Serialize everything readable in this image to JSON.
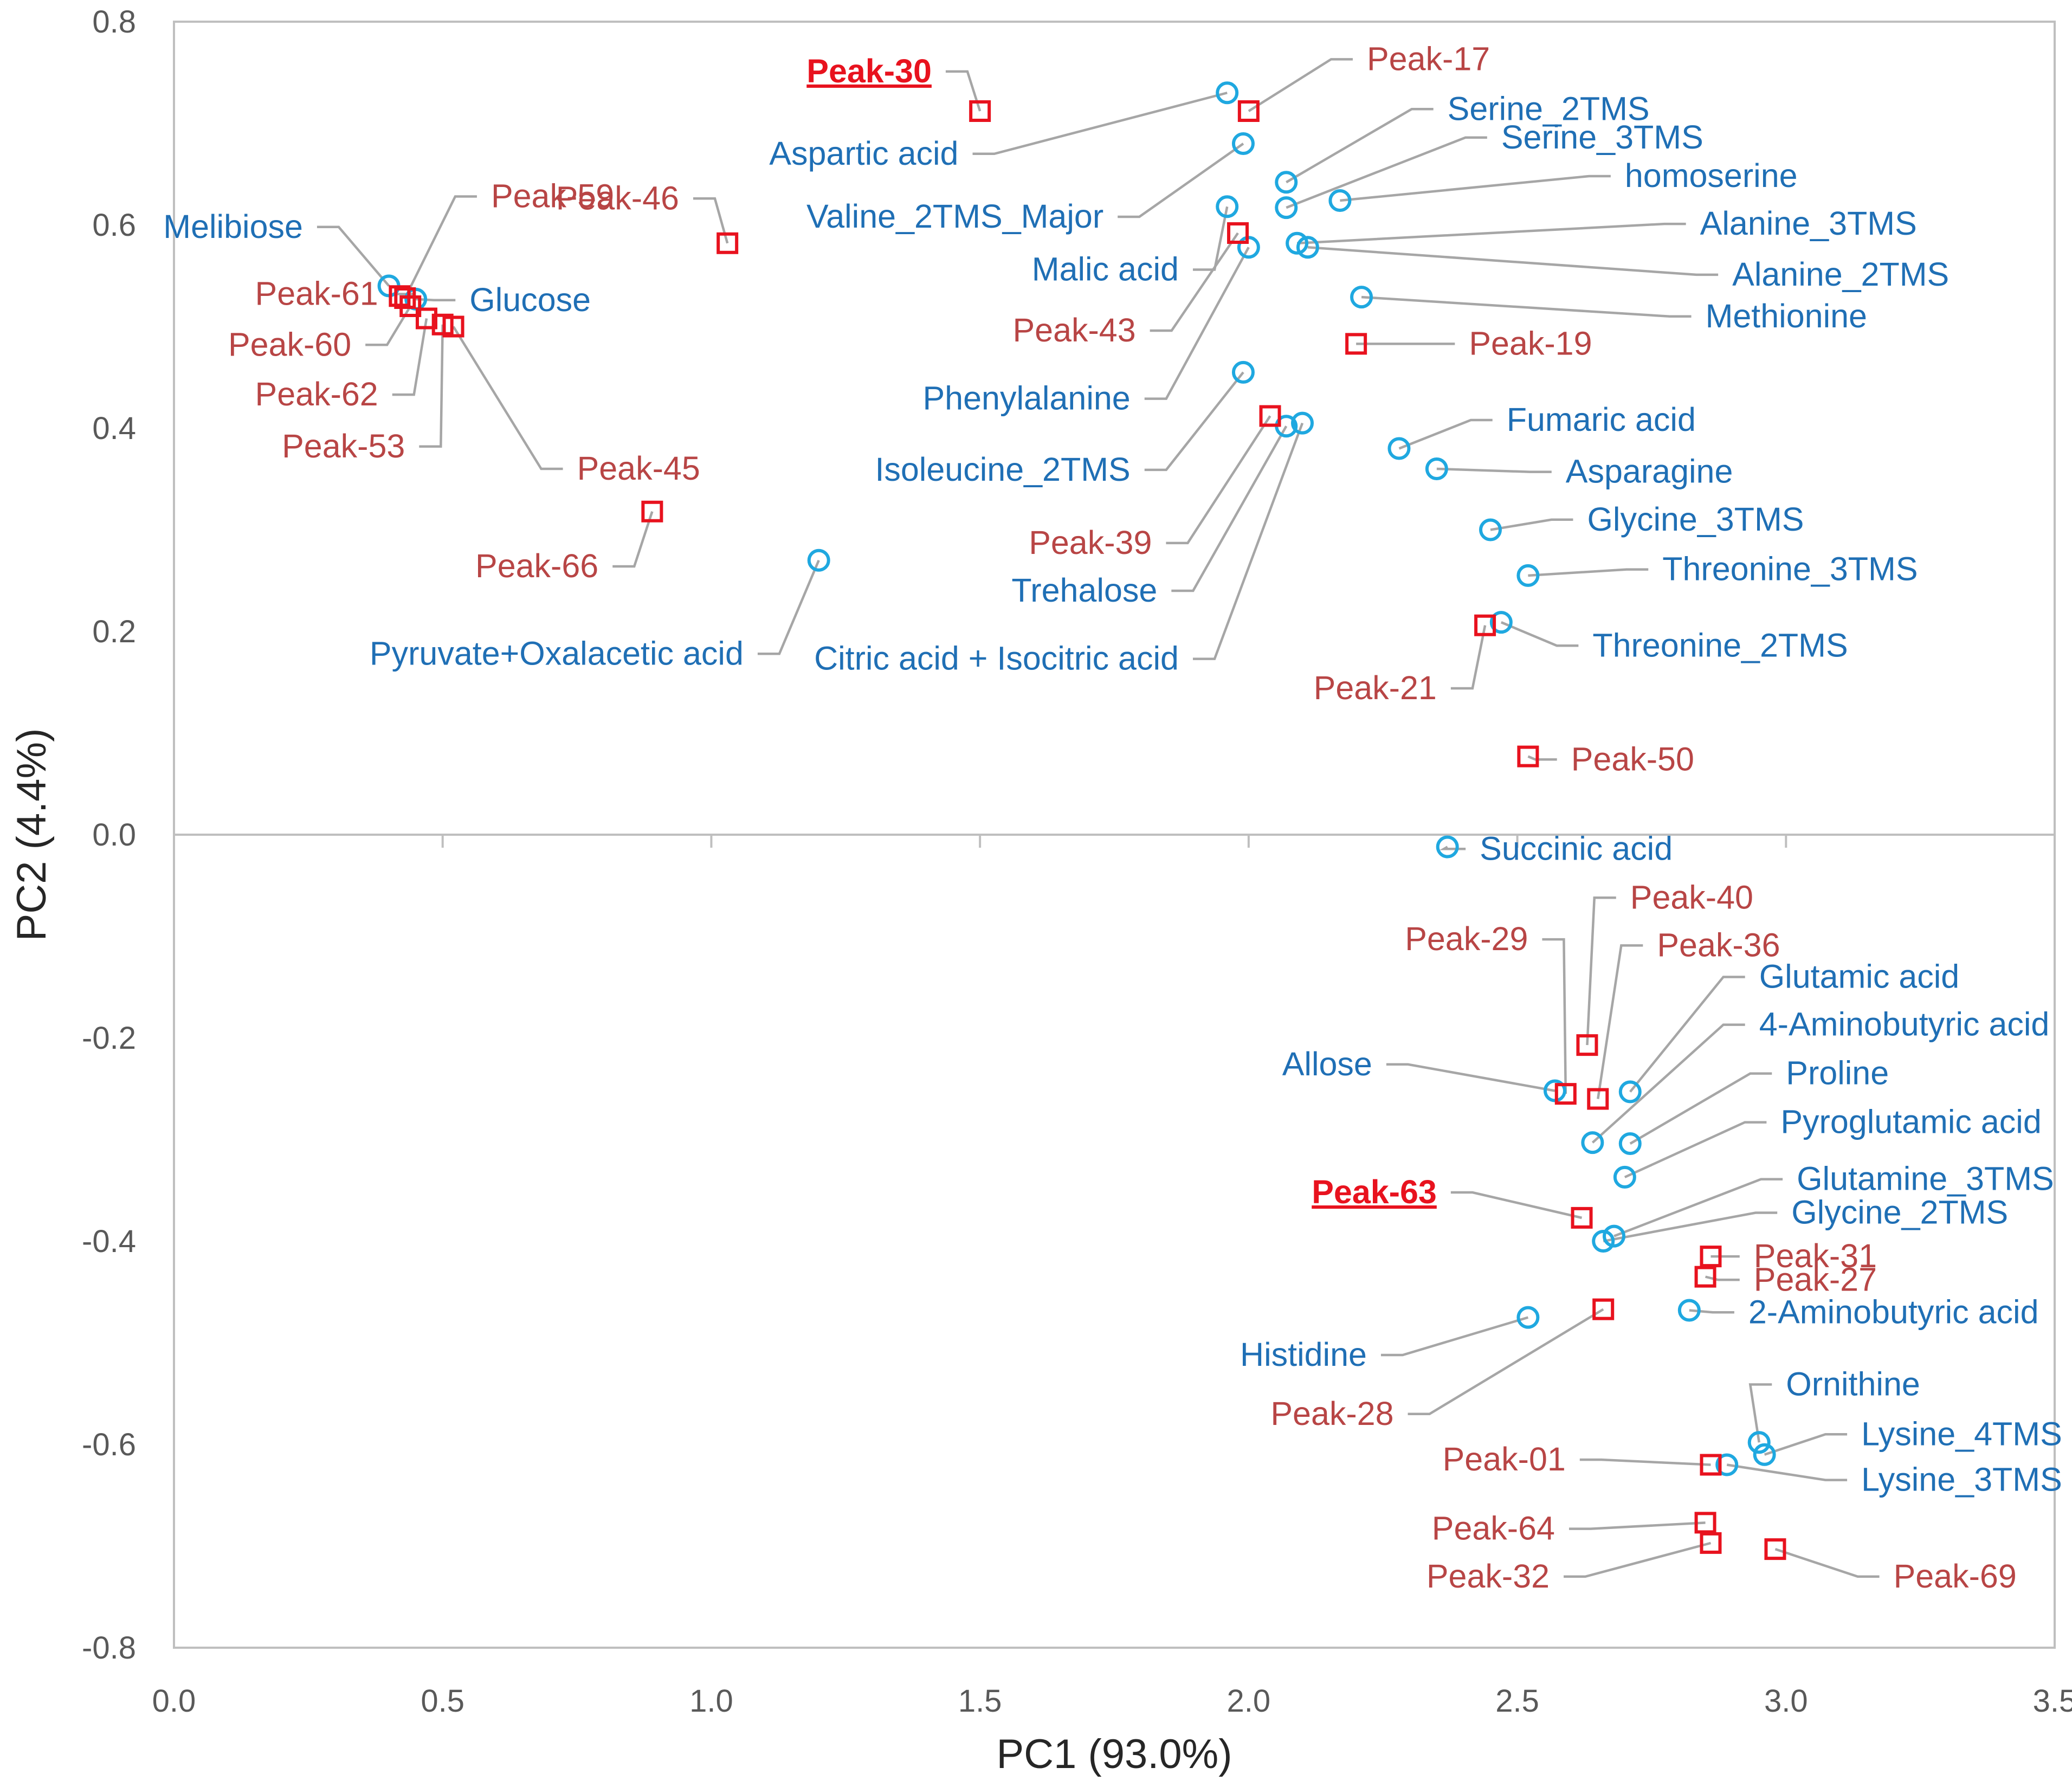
{
  "chart_data": {
    "type": "scatter",
    "title": "",
    "xlabel": "PC1 (93.0%)",
    "ylabel": "PC2 (4.4%)",
    "xlim": [
      0.0,
      3.5
    ],
    "ylim": [
      -0.8,
      0.8
    ],
    "x_ticks": [
      "0.0",
      "0.5",
      "1.0",
      "1.5",
      "2.0",
      "2.5",
      "3.0",
      "3.5"
    ],
    "y_ticks": [
      "0.8",
      "0.6",
      "0.4",
      "0.2",
      "0.0",
      "-0.2",
      "-0.4",
      "-0.6",
      "-0.8"
    ],
    "x_tick_values": [
      0.0,
      0.5,
      1.0,
      1.5,
      2.0,
      2.5,
      3.0,
      3.5
    ],
    "y_tick_values": [
      0.8,
      0.6,
      0.4,
      0.2,
      0.0,
      -0.2,
      -0.4,
      -0.6,
      -0.8
    ],
    "colors": {
      "known_marker": "#1fa8e0",
      "known_label": "#1f6fb5",
      "peak_marker": "#e8121e",
      "peak_label": "#b84545",
      "highlight_label": "#e8121e",
      "leader": "#a6a6a6",
      "axis": "#bfbfbf"
    },
    "series": [
      {
        "name": "Known metabolites",
        "marker": "circle",
        "points": [
          {
            "label": "Melibiose",
            "x": 0.4,
            "y": 0.54,
            "lx": 0.24,
            "ly": 0.598
          },
          {
            "label": "Glucose",
            "x": 0.45,
            "y": 0.527,
            "lx": 0.55,
            "ly": 0.526
          },
          {
            "label": "Aspartic acid",
            "x": 1.96,
            "y": 0.73,
            "lx": 1.46,
            "ly": 0.67
          },
          {
            "label": "Valine_2TMS_Major",
            "x": 1.99,
            "y": 0.68,
            "lx": 1.73,
            "ly": 0.608
          },
          {
            "label": "Serine_2TMS",
            "x": 2.07,
            "y": 0.642,
            "lx": 2.37,
            "ly": 0.714
          },
          {
            "label": "Serine_3TMS",
            "x": 2.07,
            "y": 0.617,
            "lx": 2.47,
            "ly": 0.686
          },
          {
            "label": "homoserine",
            "x": 2.17,
            "y": 0.624,
            "lx": 2.7,
            "ly": 0.648
          },
          {
            "label": "Malic acid",
            "x": 1.96,
            "y": 0.618,
            "lx": 1.87,
            "ly": 0.556
          },
          {
            "label": "Alanine_3TMS",
            "x": 2.09,
            "y": 0.582,
            "lx": 2.84,
            "ly": 0.601
          },
          {
            "label": "Alanine_2TMS",
            "x": 2.11,
            "y": 0.578,
            "lx": 2.9,
            "ly": 0.551
          },
          {
            "label": "Methionine",
            "x": 2.21,
            "y": 0.529,
            "lx": 2.85,
            "ly": 0.51
          },
          {
            "label": "Phenylalanine",
            "x": 2.0,
            "y": 0.578,
            "lx": 1.78,
            "ly": 0.429
          },
          {
            "label": "Isoleucine_2TMS",
            "x": 1.99,
            "y": 0.455,
            "lx": 1.78,
            "ly": 0.359
          },
          {
            "label": "Trehalose",
            "x": 2.07,
            "y": 0.402,
            "lx": 1.83,
            "ly": 0.24
          },
          {
            "label": "Citric acid + Isocitric acid",
            "x": 2.1,
            "y": 0.405,
            "lx": 1.87,
            "ly": 0.173
          },
          {
            "label": "Fumaric acid",
            "x": 2.28,
            "y": 0.38,
            "lx": 2.48,
            "ly": 0.408
          },
          {
            "label": "Asparagine",
            "x": 2.35,
            "y": 0.36,
            "lx": 2.59,
            "ly": 0.357
          },
          {
            "label": "Glycine_3TMS",
            "x": 2.45,
            "y": 0.3,
            "lx": 2.63,
            "ly": 0.31
          },
          {
            "label": "Threonine_3TMS",
            "x": 2.52,
            "y": 0.255,
            "lx": 2.77,
            "ly": 0.261
          },
          {
            "label": "Threonine_2TMS",
            "x": 2.47,
            "y": 0.209,
            "lx": 2.64,
            "ly": 0.186
          },
          {
            "label": "Pyruvate+Oxalacetic acid",
            "x": 1.2,
            "y": 0.27,
            "lx": 1.06,
            "ly": 0.178
          },
          {
            "label": "Succinic acid",
            "x": 2.37,
            "y": -0.012,
            "lx": 2.43,
            "ly": -0.014
          },
          {
            "label": "Allose",
            "x": 2.57,
            "y": -0.252,
            "lx": 2.23,
            "ly": -0.226
          },
          {
            "label": "Glutamic acid",
            "x": 2.71,
            "y": -0.253,
            "lx": 2.95,
            "ly": -0.14
          },
          {
            "label": "4-Aminobutyric acid",
            "x": 2.64,
            "y": -0.303,
            "lx": 2.95,
            "ly": -0.187
          },
          {
            "label": "Proline",
            "x": 2.71,
            "y": -0.304,
            "lx": 3.0,
            "ly": -0.235
          },
          {
            "label": "Pyroglutamic acid",
            "x": 2.7,
            "y": -0.337,
            "lx": 2.99,
            "ly": -0.283
          },
          {
            "label": "Glutamine_3TMS",
            "x": 2.68,
            "y": -0.395,
            "lx": 3.02,
            "ly": -0.339
          },
          {
            "label": "Glycine_2TMS",
            "x": 2.66,
            "y": -0.4,
            "lx": 3.01,
            "ly": -0.372
          },
          {
            "label": "2-Aminobutyric acid",
            "x": 2.82,
            "y": -0.468,
            "lx": 2.93,
            "ly": -0.47
          },
          {
            "label": "Histidine",
            "x": 2.52,
            "y": -0.475,
            "lx": 2.22,
            "ly": -0.512
          },
          {
            "label": "Ornithine",
            "x": 2.95,
            "y": -0.598,
            "lx": 3.0,
            "ly": -0.541
          },
          {
            "label": "Lysine_4TMS",
            "x": 2.96,
            "y": -0.61,
            "lx": 3.14,
            "ly": -0.59
          },
          {
            "label": "Lysine_3TMS",
            "x": 2.89,
            "y": -0.62,
            "lx": 3.14,
            "ly": -0.635
          }
        ]
      },
      {
        "name": "Unknown peaks",
        "marker": "square",
        "points": [
          {
            "label": "Peak-30",
            "x": 1.5,
            "y": 0.712,
            "lx": 1.41,
            "ly": 0.751,
            "highlight": true
          },
          {
            "label": "Peak-17",
            "x": 2.0,
            "y": 0.712,
            "lx": 2.22,
            "ly": 0.763
          },
          {
            "label": "Peak-59",
            "x": 0.43,
            "y": 0.528,
            "lx": 0.59,
            "ly": 0.628
          },
          {
            "label": "Peak-46",
            "x": 1.03,
            "y": 0.582,
            "lx": 0.94,
            "ly": 0.626
          },
          {
            "label": "Peak-61",
            "x": 0.42,
            "y": 0.53,
            "lx": 0.38,
            "ly": 0.532
          },
          {
            "label": "Peak-60",
            "x": 0.44,
            "y": 0.52,
            "lx": 0.33,
            "ly": 0.482
          },
          {
            "label": "Peak-62",
            "x": 0.47,
            "y": 0.508,
            "lx": 0.38,
            "ly": 0.433
          },
          {
            "label": "Peak-53",
            "x": 0.5,
            "y": 0.502,
            "lx": 0.43,
            "ly": 0.382
          },
          {
            "label": "Peak-45",
            "x": 0.52,
            "y": 0.5,
            "lx": 0.75,
            "ly": 0.36
          },
          {
            "label": "Peak-66",
            "x": 0.89,
            "y": 0.318,
            "lx": 0.79,
            "ly": 0.264
          },
          {
            "label": "Peak-43",
            "x": 1.98,
            "y": 0.592,
            "lx": 1.79,
            "ly": 0.496
          },
          {
            "label": "Peak-19",
            "x": 2.2,
            "y": 0.483,
            "lx": 2.41,
            "ly": 0.483
          },
          {
            "label": "Peak-39",
            "x": 2.04,
            "y": 0.412,
            "lx": 1.82,
            "ly": 0.287
          },
          {
            "label": "Peak-21",
            "x": 2.44,
            "y": 0.206,
            "lx": 2.35,
            "ly": 0.144
          },
          {
            "label": "Peak-50",
            "x": 2.52,
            "y": 0.077,
            "lx": 2.6,
            "ly": 0.074
          },
          {
            "label": "Peak-40",
            "x": 2.63,
            "y": -0.207,
            "lx": 2.71,
            "ly": -0.062
          },
          {
            "label": "Peak-29",
            "x": 2.59,
            "y": -0.255,
            "lx": 2.52,
            "ly": -0.103
          },
          {
            "label": "Peak-36",
            "x": 2.65,
            "y": -0.26,
            "lx": 2.76,
            "ly": -0.109
          },
          {
            "label": "Peak-63",
            "x": 2.62,
            "y": -0.377,
            "lx": 2.35,
            "ly": -0.352,
            "highlight": true
          },
          {
            "label": "Peak-31",
            "x": 2.86,
            "y": -0.415,
            "lx": 2.94,
            "ly": -0.415
          },
          {
            "label": "Peak-27",
            "x": 2.85,
            "y": -0.435,
            "lx": 2.94,
            "ly": -0.438
          },
          {
            "label": "Peak-28",
            "x": 2.66,
            "y": -0.467,
            "lx": 2.27,
            "ly": -0.57
          },
          {
            "label": "Peak-01",
            "x": 2.86,
            "y": -0.62,
            "lx": 2.59,
            "ly": -0.615
          },
          {
            "label": "Peak-64",
            "x": 2.85,
            "y": -0.677,
            "lx": 2.57,
            "ly": -0.683
          },
          {
            "label": "Peak-32",
            "x": 2.86,
            "y": -0.697,
            "lx": 2.56,
            "ly": -0.73
          },
          {
            "label": "Peak-69",
            "x": 2.98,
            "y": -0.703,
            "lx": 3.2,
            "ly": -0.73
          }
        ]
      }
    ]
  }
}
